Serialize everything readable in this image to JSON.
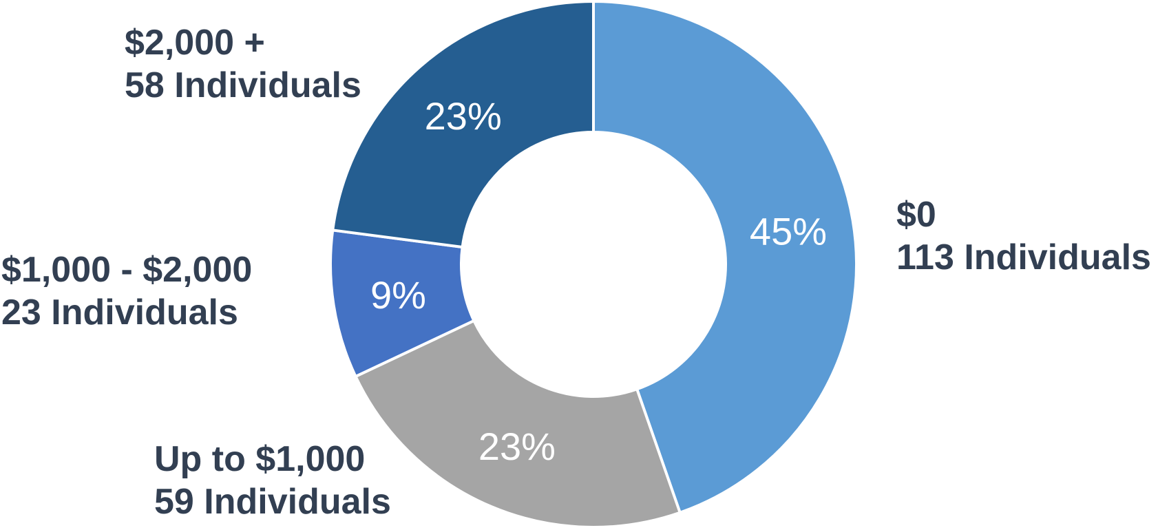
{
  "chart_data": {
    "type": "pie",
    "subtype": "donut",
    "legend": "none",
    "start_angle": "12 o'clock",
    "direction": "clockwise",
    "slices": [
      {
        "category": "$0",
        "count_label": "113 Individuals",
        "count": 113,
        "percent": 45,
        "percent_label": "45%",
        "color": "#5b9bd5"
      },
      {
        "category": "Up to $1,000",
        "count_label": "59 Individuals",
        "count": 59,
        "percent": 23,
        "percent_label": "23%",
        "color": "#a5a5a5"
      },
      {
        "category": "$1,000 - $2,000",
        "count_label": "23 Individuals",
        "count": 23,
        "percent": 9,
        "percent_label": "9%",
        "color": "#4472c4"
      },
      {
        "category": "$2,000 +",
        "count_label": "58 Individuals",
        "count": 58,
        "percent": 23,
        "percent_label": "23%",
        "color": "#255e91"
      }
    ]
  },
  "labels": {
    "s0": {
      "category": "$0",
      "count": "113 Individuals"
    },
    "s1": {
      "category": "Up to $1,000",
      "count": "59 Individuals"
    },
    "s2": {
      "category": "$1,000 - $2,000",
      "count": "23 Individuals"
    },
    "s3": {
      "category": "$2,000 +",
      "count": "58 Individuals"
    }
  },
  "colors": {
    "label_text": "#323f52",
    "percent_text": "#ffffff",
    "slice_border": "#ffffff"
  }
}
